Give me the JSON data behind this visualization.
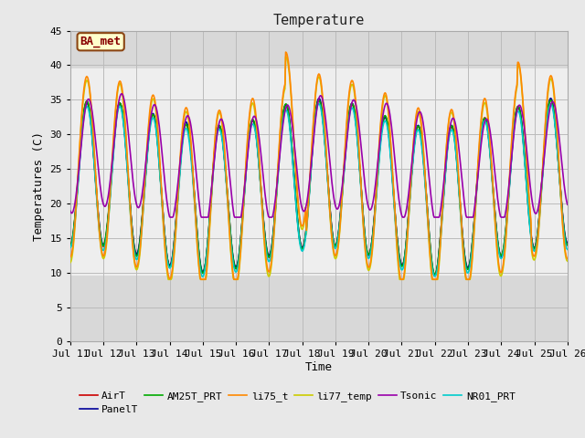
{
  "title": "Temperature",
  "xlabel": "Time",
  "ylabel": "Temperatures (C)",
  "ylim": [
    0,
    45
  ],
  "yticks": [
    0,
    5,
    10,
    15,
    20,
    25,
    30,
    35,
    40,
    45
  ],
  "series": {
    "AirT": {
      "color": "#cc0000",
      "lw": 1.2,
      "zorder": 3
    },
    "PanelT": {
      "color": "#000099",
      "lw": 1.2,
      "zorder": 3
    },
    "AM25T_PRT": {
      "color": "#00aa00",
      "lw": 1.2,
      "zorder": 3
    },
    "li75_t": {
      "color": "#ff8800",
      "lw": 1.2,
      "zorder": 4
    },
    "li77_temp": {
      "color": "#cccc00",
      "lw": 1.2,
      "zorder": 3
    },
    "Tsonic": {
      "color": "#9900aa",
      "lw": 1.2,
      "zorder": 5
    },
    "NR01_PRT": {
      "color": "#00cccc",
      "lw": 1.2,
      "zorder": 3
    }
  },
  "bg_color": "#e8e8e8",
  "inner_bg_color": "#f2f2f2",
  "band1_color": "#e0e0e0",
  "band2_color": "#f2f2f2",
  "font_size_title": 11,
  "font_size_axis": 9,
  "font_size_tick": 8,
  "font_size_legend": 8,
  "legend_label": "BA_met"
}
